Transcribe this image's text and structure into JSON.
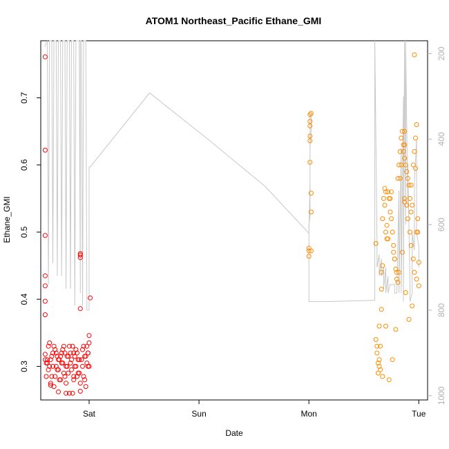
{
  "chart_data": {
    "type": "scatter",
    "title": "ATOM1 Northeast_Pacific Ethane_GMI",
    "xlabel": "Date",
    "ylabel": "Ethane_GMI",
    "x_ticks": [
      "Sat",
      "Sun",
      "Mon",
      "Tue"
    ],
    "x_tick_pos": [
      1.0,
      2.0,
      3.0,
      4.0
    ],
    "xlim": [
      0.56,
      4.08
    ],
    "ylim": [
      0.25,
      0.785
    ],
    "y_ticks": [
      0.3,
      0.4,
      0.5,
      0.6,
      0.7
    ],
    "y2_ticks": [
      200,
      400,
      600,
      800,
      1000
    ],
    "y2lim": [
      1010,
      170
    ],
    "y2_reversed": true,
    "grid": false,
    "colors": {
      "series1": "#ff0000",
      "series2": "#ff8c00",
      "pressure": "#c8c8c8",
      "right_axis": "#b0b0b0"
    },
    "series": [
      {
        "color": "#ff0000",
        "x": [
          0.6,
          0.6,
          0.6,
          0.6,
          0.6,
          0.6,
          0.6,
          0.6,
          0.6,
          0.62,
          0.62,
          0.64,
          0.64,
          0.66,
          0.66,
          0.68,
          0.68,
          0.7,
          0.7,
          0.72,
          0.72,
          0.74,
          0.74,
          0.76,
          0.76,
          0.78,
          0.78,
          0.8,
          0.8,
          0.82,
          0.82,
          0.84,
          0.84,
          0.86,
          0.86,
          0.88,
          0.88,
          0.9,
          0.9,
          0.92,
          0.93,
          0.95,
          0.95,
          0.97,
          0.97,
          0.99,
          0.99,
          0.61,
          0.61,
          0.63,
          0.63,
          0.65,
          0.65,
          0.67,
          0.67,
          0.69,
          0.69,
          0.71,
          0.71,
          0.73,
          0.73,
          0.75,
          0.75,
          0.77,
          0.77,
          0.79,
          0.79,
          0.81,
          0.81,
          0.83,
          0.83,
          0.85,
          0.85,
          0.87,
          0.87,
          0.89,
          0.89,
          0.91,
          0.91,
          0.94,
          0.94,
          0.96,
          0.96,
          0.98,
          0.98,
          1.0,
          1.0,
          0.65,
          0.72,
          0.79,
          0.86,
          0.92,
          0.92,
          0.92,
          0.92,
          0.92,
          1.01,
          1.0,
          0.99
        ],
        "y": [
          0.761,
          0.622,
          0.495,
          0.435,
          0.42,
          0.397,
          0.377,
          0.318,
          0.31,
          0.31,
          0.305,
          0.3,
          0.335,
          0.285,
          0.315,
          0.27,
          0.33,
          0.3,
          0.32,
          0.295,
          0.31,
          0.315,
          0.28,
          0.305,
          0.325,
          0.285,
          0.32,
          0.3,
          0.315,
          0.26,
          0.33,
          0.31,
          0.295,
          0.32,
          0.285,
          0.3,
          0.325,
          0.31,
          0.29,
          0.275,
          0.31,
          0.33,
          0.285,
          0.27,
          0.315,
          0.3,
          0.32,
          0.305,
          0.285,
          0.33,
          0.295,
          0.275,
          0.31,
          0.32,
          0.3,
          0.285,
          0.325,
          0.315,
          0.295,
          0.31,
          0.28,
          0.32,
          0.305,
          0.29,
          0.33,
          0.3,
          0.275,
          0.315,
          0.29,
          0.32,
          0.305,
          0.26,
          0.33,
          0.3,
          0.315,
          0.285,
          0.32,
          0.31,
          0.29,
          0.3,
          0.325,
          0.28,
          0.315,
          0.305,
          0.33,
          0.335,
          0.3,
          0.272,
          0.262,
          0.26,
          0.28,
          0.468,
          0.462,
          0.466,
          0.386,
          0.263,
          0.402,
          0.346,
          0.32
        ]
      },
      {
        "color": "#ff8c00",
        "x": [
          3.01,
          3.01,
          3.01,
          3.01,
          3.01,
          3.01,
          3.02,
          3.02,
          3.0,
          3.0,
          3.0,
          3.02,
          3.02,
          3.61,
          3.62,
          3.63,
          3.64,
          3.65,
          3.65,
          3.66,
          3.66,
          3.67,
          3.68,
          3.69,
          3.7,
          3.71,
          3.72,
          3.73,
          3.74,
          3.75,
          3.76,
          3.77,
          3.78,
          3.79,
          3.8,
          3.81,
          3.82,
          3.83,
          3.84,
          3.85,
          3.86,
          3.87,
          3.88,
          3.89,
          3.9,
          3.91,
          3.92,
          3.93,
          3.94,
          3.95,
          3.96,
          3.97,
          3.98,
          3.99,
          4.0,
          3.62,
          3.63,
          3.64,
          3.66,
          3.67,
          3.69,
          3.7,
          3.71,
          3.72,
          3.74,
          3.75,
          3.77,
          3.78,
          3.8,
          3.81,
          3.83,
          3.84,
          3.86,
          3.87,
          3.89,
          3.9,
          3.92,
          3.93,
          3.95,
          3.96,
          3.98,
          3.99,
          3.61,
          3.64,
          3.67,
          3.7,
          3.73,
          3.76,
          3.79,
          3.82,
          3.85,
          3.88,
          3.91,
          3.94,
          3.97,
          4.0,
          3.87,
          3.87,
          3.87,
          3.93,
          3.96,
          3.98
        ],
        "y": [
          0.675,
          0.665,
          0.658,
          0.643,
          0.636,
          0.604,
          0.558,
          0.53,
          0.476,
          0.472,
          0.464,
          0.472,
          0.677,
          0.34,
          0.33,
          0.29,
          0.31,
          0.33,
          0.295,
          0.415,
          0.385,
          0.52,
          0.55,
          0.565,
          0.5,
          0.49,
          0.56,
          0.55,
          0.53,
          0.52,
          0.5,
          0.48,
          0.46,
          0.445,
          0.43,
          0.58,
          0.6,
          0.62,
          0.64,
          0.65,
          0.63,
          0.61,
          0.6,
          0.59,
          0.58,
          0.57,
          0.55,
          0.53,
          0.54,
          0.6,
          0.62,
          0.64,
          0.66,
          0.5,
          0.42,
          0.32,
          0.305,
          0.3,
          0.44,
          0.45,
          0.54,
          0.56,
          0.51,
          0.49,
          0.55,
          0.56,
          0.47,
          0.46,
          0.44,
          0.425,
          0.58,
          0.6,
          0.62,
          0.55,
          0.54,
          0.52,
          0.5,
          0.48,
          0.46,
          0.44,
          0.43,
          0.52,
          0.483,
          0.36,
          0.285,
          0.36,
          0.28,
          0.31,
          0.355,
          0.44,
          0.47,
          0.41,
          0.37,
          0.39,
          0.595,
          0.455,
          0.63,
          0.65,
          0.545,
          0.57,
          0.764,
          0.5
        ]
      }
    ],
    "pressure_line": {
      "x": [
        0.6,
        0.6,
        0.62,
        0.63,
        0.64,
        0.66,
        0.67,
        0.68,
        0.7,
        0.71,
        0.72,
        0.74,
        0.75,
        0.76,
        0.78,
        0.79,
        0.8,
        0.82,
        0.83,
        0.84,
        0.86,
        0.87,
        0.88,
        0.9,
        0.91,
        0.92,
        0.92,
        0.93,
        0.94,
        0.95,
        0.96,
        0.97,
        0.98,
        0.99,
        1.0,
        1.0,
        1.01,
        1.01,
        1.55,
        2.08,
        2.6,
        3.0,
        3.01,
        3.01,
        3.02,
        3.02,
        3.01,
        3.01,
        3.0,
        3.0,
        3.15,
        3.3,
        3.45,
        3.6,
        3.6,
        3.62,
        3.62,
        3.64,
        3.64,
        3.66,
        3.66,
        3.68,
        3.68,
        3.7,
        3.7,
        3.72,
        3.72,
        3.74,
        3.74,
        3.76,
        3.76,
        3.78,
        3.78,
        3.8,
        3.8,
        3.82,
        3.82,
        3.84,
        3.84,
        3.86,
        3.86,
        3.87,
        3.88,
        3.88,
        3.9,
        3.9,
        3.92,
        3.92,
        3.94,
        3.94,
        3.96,
        3.96,
        3.98,
        3.98,
        4.0,
        4.0
      ],
      "y": [
        185,
        180,
        170,
        740,
        170,
        170,
        690,
        170,
        170,
        720,
        170,
        170,
        720,
        170,
        170,
        750,
        170,
        170,
        750,
        170,
        170,
        790,
        170,
        170,
        170,
        760,
        170,
        170,
        790,
        170,
        170,
        170,
        800,
        800,
        800,
        465,
        465,
        465,
        292,
        400,
        510,
        620,
        500,
        420,
        380,
        350,
        340,
        580,
        600,
        780,
        780,
        779,
        778,
        777,
        170,
        640,
        700,
        670,
        720,
        680,
        720,
        700,
        750,
        700,
        760,
        720,
        760,
        740,
        740,
        740,
        740,
        740,
        760,
        760,
        760,
        520,
        760,
        420,
        760,
        300,
        780,
        170,
        600,
        170,
        560,
        460,
        740,
        780,
        760,
        620,
        660,
        500,
        400,
        620,
        650,
        700
      ]
    }
  }
}
